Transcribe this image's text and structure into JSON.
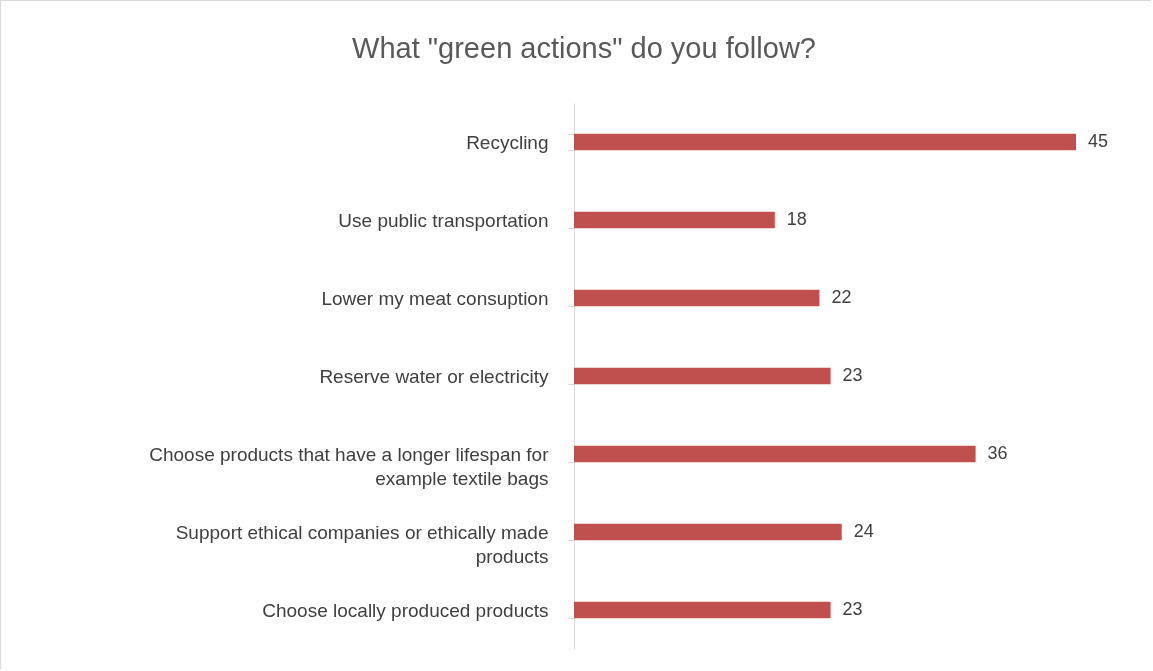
{
  "chart_data": {
    "type": "bar",
    "orientation": "horizontal",
    "title": "What \"green actions\" do you follow?",
    "categories": [
      "Recycling",
      "Use public transportation",
      "Lower my meat consuption",
      "Reserve water or electricity",
      "Choose products that have a  longer lifespan for example textile bags",
      "Support ethical companies or ethically made products",
      "Choose locally produced products"
    ],
    "values": [
      45,
      18,
      22,
      23,
      36,
      24,
      23
    ],
    "color": "#c0504d",
    "data_labels": true
  }
}
